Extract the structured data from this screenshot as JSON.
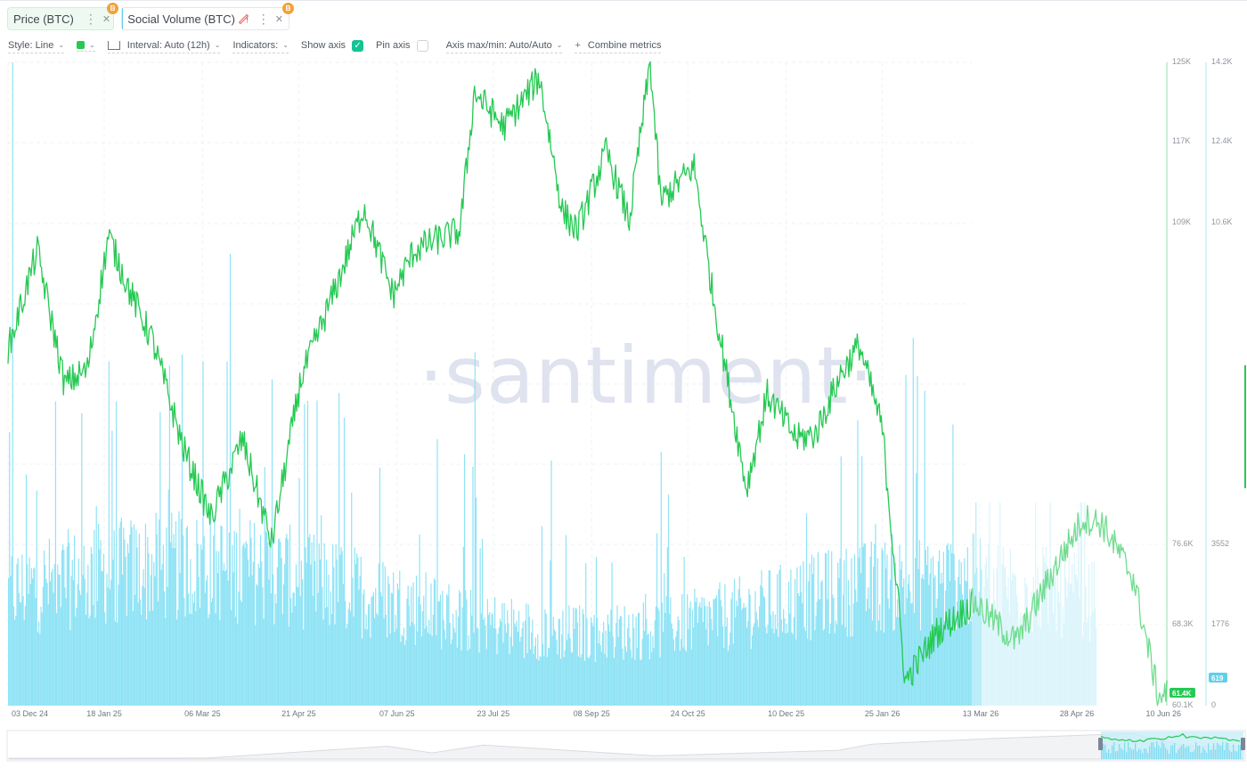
{
  "metrics": [
    {
      "label": "Price (BTC)",
      "color": "#26c953",
      "badge": "B",
      "active": true
    },
    {
      "label": "Social Volume (BTC)",
      "color": "#5fd0ea",
      "badge": "B",
      "warning": true,
      "active": false
    }
  ],
  "toolbar": {
    "style": "Style: Line",
    "interval": "Interval: Auto (12h)",
    "indicators": "Indicators:",
    "show_axis": "Show axis",
    "show_axis_checked": true,
    "pin_axis": "Pin axis",
    "pin_axis_checked": false,
    "axis_maxmin": "Axis max/min: Auto/Auto",
    "combine": "Combine metrics"
  },
  "watermark": "·santiment·",
  "icons": {
    "chevron": "chevron-down-icon",
    "kebab": "kebab-menu-icon",
    "close": "close-icon",
    "warning": "warning-diamond-icon",
    "plus": "plus-icon",
    "interval": "interval-icon",
    "check": "check-icon"
  },
  "chart_data": {
    "type": "line",
    "x_tick_labels": [
      "03 Dec 24",
      "18 Jan 25",
      "06 Mar 25",
      "21 Apr 25",
      "07 Jun 25",
      "23 Jul 25",
      "08 Sep 25",
      "24 Oct 25",
      "10 Dec 25",
      "25 Jan 26",
      "13 Mar 26",
      "28 Apr 26",
      "10 Jun 26"
    ],
    "xlim": [
      "2024-12-03",
      "2026-06-10"
    ],
    "price_axis": {
      "ticks": [
        "125K",
        "117K",
        "109K",
        "76.6K",
        "68.3K",
        "60.1K"
      ],
      "last_value_label": "61.4K",
      "color": "#26c953"
    },
    "social_axis": {
      "ticks": [
        "14.2K",
        "12.4K",
        "10.6K",
        "3552",
        "1776",
        "0"
      ],
      "last_value_label": "619",
      "color": "#5fd0ea"
    },
    "series": [
      {
        "name": "Price (BTC)",
        "type": "line",
        "color": "#26c953",
        "points": [
          [
            "2024-12-03",
            96000
          ],
          [
            "2024-12-17",
            106000
          ],
          [
            "2024-12-30",
            92500
          ],
          [
            "2025-01-10",
            94000
          ],
          [
            "2025-01-20",
            107500
          ],
          [
            "2025-01-31",
            101500
          ],
          [
            "2025-02-10",
            97000
          ],
          [
            "2025-02-25",
            86000
          ],
          [
            "2025-03-10",
            79000
          ],
          [
            "2025-03-25",
            87000
          ],
          [
            "2025-04-08",
            76500
          ],
          [
            "2025-04-22",
            93000
          ],
          [
            "2025-05-10",
            103000
          ],
          [
            "2025-05-22",
            110500
          ],
          [
            "2025-06-05",
            101500
          ],
          [
            "2025-06-15",
            106000
          ],
          [
            "2025-06-25",
            107000
          ],
          [
            "2025-07-07",
            108000
          ],
          [
            "2025-07-14",
            122000
          ],
          [
            "2025-07-28",
            118500
          ],
          [
            "2025-08-14",
            123500
          ],
          [
            "2025-08-25",
            110000
          ],
          [
            "2025-09-01",
            108000
          ],
          [
            "2025-09-15",
            116000
          ],
          [
            "2025-09-26",
            109000
          ],
          [
            "2025-10-06",
            125000
          ],
          [
            "2025-10-11",
            111000
          ],
          [
            "2025-10-27",
            114500
          ],
          [
            "2025-11-05",
            101500
          ],
          [
            "2025-11-21",
            82000
          ],
          [
            "2025-12-01",
            91500
          ],
          [
            "2025-12-15",
            87000
          ],
          [
            "2025-12-24",
            87500
          ],
          [
            "2026-01-05",
            93500
          ],
          [
            "2026-01-14",
            96500
          ],
          [
            "2026-01-25",
            88000
          ],
          [
            "2026-02-05",
            62500
          ],
          [
            "2026-02-20",
            67500
          ],
          [
            "2026-03-10",
            70500
          ],
          [
            "2026-03-30",
            66500
          ],
          [
            "2026-04-20",
            75000
          ],
          [
            "2026-05-01",
            79000
          ],
          [
            "2026-05-10",
            78500
          ],
          [
            "2026-05-25",
            73000
          ],
          [
            "2026-06-06",
            61000
          ],
          [
            "2026-06-10",
            61400
          ]
        ]
      },
      {
        "name": "Social Volume (BTC)",
        "type": "bar",
        "color": "#8fe3f5",
        "approx_level": 2800,
        "spikes": [
          [
            "2024-12-05",
            14200
          ],
          [
            "2025-01-20",
            7600
          ],
          [
            "2025-03-06",
            7600
          ],
          [
            "2025-04-08",
            7200
          ],
          [
            "2025-05-10",
            6900
          ],
          [
            "2025-07-14",
            7800
          ],
          [
            "2025-10-11",
            5600
          ],
          [
            "2026-01-13",
            6300
          ],
          [
            "2026-02-05",
            7300
          ]
        ]
      }
    ],
    "grid": true,
    "legend": "top-left"
  }
}
